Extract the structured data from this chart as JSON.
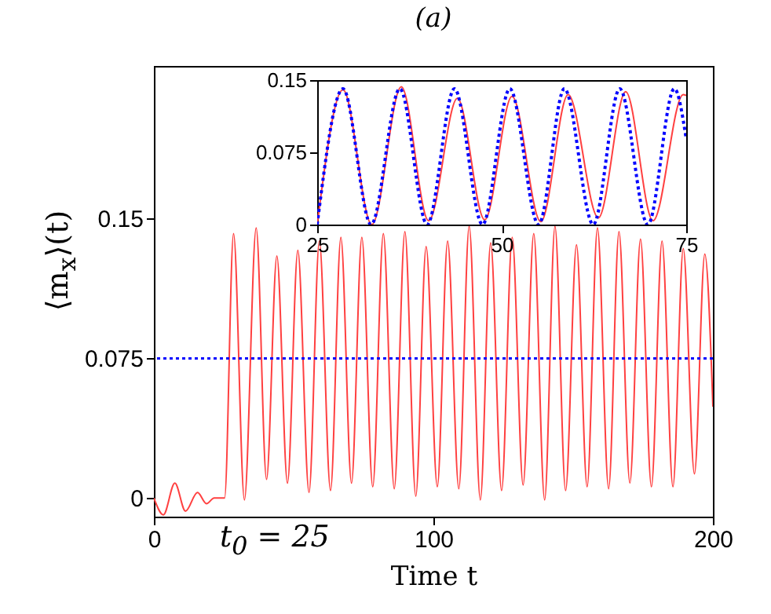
{
  "chart_data": [
    {
      "type": "line",
      "title": "(a)",
      "xlabel": "Time t",
      "ylabel": "⟨m$_{x}$⟩(t)",
      "xlim": [
        0,
        200
      ],
      "ylim": [
        -0.01,
        0.232
      ],
      "xticks": [
        0,
        100,
        200
      ],
      "yticks": [
        0,
        0.075,
        0.15
      ],
      "grid": false,
      "series": [
        {
          "color": "#ff4040",
          "x": [
            0,
            3.4,
            7.5,
            11.3,
            15.6,
            18.8,
            21.6,
            25.3,
            28.5,
            32.4,
            36.6,
            40.3,
            44.0,
            47.8,
            51.5,
            55.5,
            59.2,
            63.2,
            66.9,
            70.7,
            74.4,
            78.3,
            82.1,
            86.0,
            89.8,
            93.7,
            97.4,
            101.4,
            105.1,
            109.1,
            112.8,
            116.8,
            120.5,
            124.4,
            128.2,
            132.1,
            135.9,
            139.8,
            143.5,
            147.3,
            151.2,
            155.0,
            158.7,
            162.7,
            166.4,
            170.3,
            174.1,
            178.0,
            181.8,
            185.7,
            189.4,
            193.4,
            197.1,
            200
          ],
          "values": [
            0,
            -0.009,
            0.008,
            -0.007,
            0.003,
            -0.003,
            0,
            0,
            0.142,
            -0.001,
            0.145,
            0.01,
            0.13,
            0.008,
            0.133,
            0.003,
            0.138,
            0.004,
            0.14,
            0.008,
            0.14,
            0.006,
            0.142,
            0.005,
            0.143,
            0.001,
            0.135,
            0.006,
            0.138,
            0.005,
            0.146,
            -0.001,
            0.137,
            0.004,
            0.14,
            0.007,
            0.142,
            -0.001,
            0.146,
            0.004,
            0.136,
            0.006,
            0.145,
            0.005,
            0.143,
            0.008,
            0.139,
            0.006,
            0.138,
            0.006,
            0.134,
            0.013,
            0.131,
            0.049
          ]
        }
      ],
      "ref_lines": [
        {
          "axis": "y",
          "value": 0.075,
          "color": "#0000ff",
          "line_style": "dotted"
        }
      ],
      "annotations": [
        "t$_{0}$ = 25"
      ]
    },
    {
      "type": "line",
      "xlim": [
        25,
        75
      ],
      "ylim": [
        0,
        0.15
      ],
      "xticks": [
        25,
        50,
        75
      ],
      "yticks": [
        0,
        0.075,
        0.15
      ],
      "grid": false,
      "series": [
        {
          "color": "#ff4040",
          "line_style": "solid",
          "x": [
            25,
            28.5,
            32.4,
            36.4,
            40.1,
            44,
            47.7,
            51.4,
            55.3,
            59,
            63.1,
            66.8,
            70.5,
            74.6,
            75
          ],
          "values": [
            0,
            0.14,
            0,
            0.143,
            0.004,
            0.131,
            0.005,
            0.133,
            0.003,
            0.135,
            0.007,
            0.138,
            0.004,
            0.135,
            0.134
          ]
        },
        {
          "color": "#0000ff",
          "line_style": "dotted",
          "x": [
            25,
            28.5,
            32.3,
            36.2,
            39.9,
            43.6,
            47.4,
            51.1,
            55,
            58.5,
            62.4,
            66,
            69.8,
            73.4,
            75
          ],
          "values": [
            0,
            0.141,
            0,
            0.141,
            0,
            0.141,
            0,
            0.141,
            0,
            0.141,
            0,
            0.141,
            0,
            0.141,
            0.089
          ]
        }
      ]
    }
  ]
}
